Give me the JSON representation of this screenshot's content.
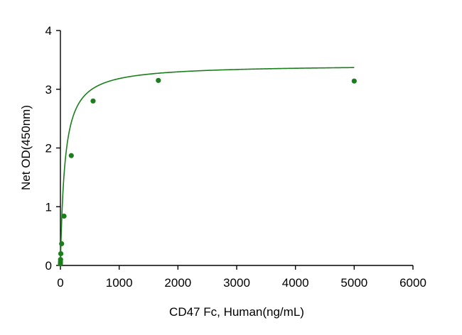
{
  "chart_data": {
    "type": "scatter",
    "title": "",
    "xlabel": "CD47 Fc, Human(ng/mL)",
    "ylabel": "Net OD(450nm)",
    "xlim": [
      0,
      6000
    ],
    "ylim": [
      0,
      4
    ],
    "xticks": [
      0,
      1000,
      2000,
      3000,
      4000,
      5000,
      6000
    ],
    "yticks": [
      0,
      1,
      2,
      3,
      4
    ],
    "grid": false,
    "legend": "none",
    "color": "#1a7f1a",
    "series": [
      {
        "points": [
          {
            "x": 0.3,
            "y": 0.03
          },
          {
            "x": 0.9,
            "y": 0.06
          },
          {
            "x": 2.7,
            "y": 0.1
          },
          {
            "x": 6.9,
            "y": 0.2
          },
          {
            "x": 20.6,
            "y": 0.37
          },
          {
            "x": 61.7,
            "y": 0.84
          },
          {
            "x": 185,
            "y": 1.87
          },
          {
            "x": 556,
            "y": 2.8
          },
          {
            "x": 1667,
            "y": 3.15
          },
          {
            "x": 5000,
            "y": 3.14
          }
        ],
        "fit": {
          "model": "hyperbolic",
          "bmax": 3.42,
          "kd": 75
        }
      }
    ]
  }
}
